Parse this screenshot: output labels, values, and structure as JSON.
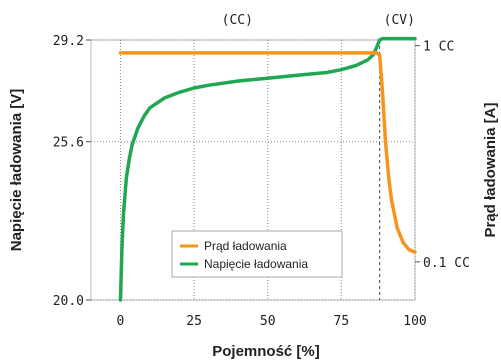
{
  "chart_data": {
    "type": "line",
    "title": "",
    "xlabel": "Pojemność [%]",
    "ylabel": "Napięcie ładowania [V]",
    "y2label": "Prąd ładowania [A]",
    "xlim": [
      -10,
      100
    ],
    "ylim": [
      20.0,
      29.2
    ],
    "xticks": [
      "0",
      "25",
      "50",
      "75",
      "100"
    ],
    "yticks": [
      "20.0",
      "25.6",
      "29.2"
    ],
    "y2ticks": [
      "1 CC",
      "0.1 CC"
    ],
    "y2_values": [
      1.0,
      0.1
    ],
    "phase_labels": [
      "(CC)",
      "(CV)"
    ],
    "phase_boundary_x": 88,
    "grid": true,
    "legend_position": "center",
    "colors": {
      "current": "#f7941d",
      "voltage": "#1fa84f",
      "grid": "#8a8a8a"
    },
    "series": [
      {
        "name": "Prąd ładowania",
        "axis": "right",
        "x": [
          0,
          87,
          88,
          89,
          90,
          91,
          92,
          94,
          96,
          98,
          100
        ],
        "y": [
          0.97,
          0.97,
          0.96,
          0.8,
          0.6,
          0.46,
          0.36,
          0.24,
          0.18,
          0.15,
          0.14
        ]
      },
      {
        "name": "Napięcie ładowania",
        "axis": "left",
        "x": [
          0,
          0.5,
          1,
          2,
          3,
          4,
          6,
          8,
          10,
          15,
          20,
          25,
          30,
          40,
          50,
          60,
          70,
          75,
          80,
          84,
          86,
          87,
          88,
          89,
          100
        ],
        "y": [
          20.0,
          21.8,
          23.0,
          24.3,
          25.0,
          25.5,
          26.1,
          26.5,
          26.8,
          27.15,
          27.35,
          27.5,
          27.6,
          27.75,
          27.85,
          27.95,
          28.05,
          28.15,
          28.3,
          28.5,
          28.7,
          28.95,
          29.2,
          29.25,
          29.25
        ]
      }
    ]
  }
}
